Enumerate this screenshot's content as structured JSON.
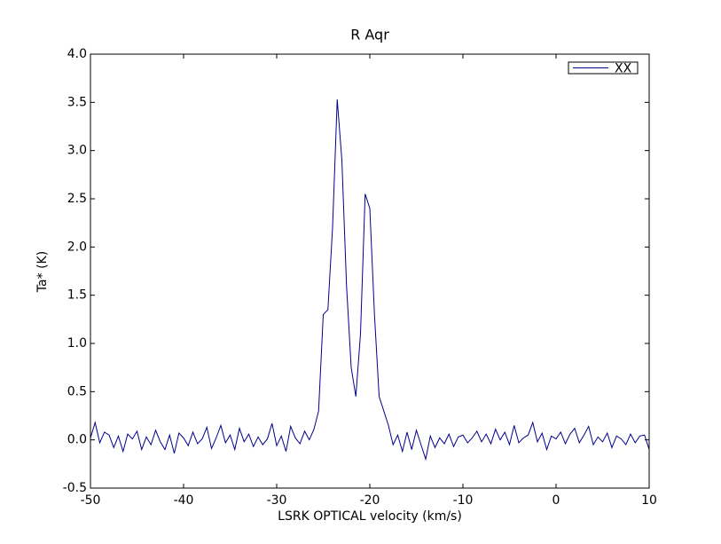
{
  "chart_data": {
    "type": "line",
    "title": "R Aqr",
    "x_label": "LSRK OPTICAL velocity (km/s)",
    "y_label": "Ta* (K)",
    "x": [
      -50,
      -49.5,
      -49,
      -48.5,
      -48,
      -47.5,
      -47,
      -46.5,
      -46,
      -45.5,
      -45,
      -44.5,
      -44,
      -43.5,
      -43,
      -42.5,
      -42,
      -41.5,
      -41,
      -40.5,
      -40,
      -39.5,
      -39,
      -38.5,
      -38,
      -37.5,
      -37,
      -36.5,
      -36,
      -35.5,
      -35,
      -34.5,
      -34,
      -33.5,
      -33,
      -32.5,
      -32,
      -31.5,
      -31,
      -30.5,
      -30,
      -29.5,
      -29,
      -28.5,
      -28,
      -27.5,
      -27,
      -26.5,
      -26,
      -25.5,
      -25,
      -24.5,
      -24,
      -23.5,
      -23,
      -22.5,
      -22,
      -21.5,
      -21,
      -20.5,
      -20,
      -19.5,
      -19,
      -18.5,
      -18,
      -17.5,
      -17,
      -16.5,
      -16,
      -15.5,
      -15,
      -14.5,
      -14,
      -13.5,
      -13,
      -12.5,
      -12,
      -11.5,
      -11,
      -10.5,
      -10,
      -9.5,
      -9,
      -8.5,
      -8,
      -7.5,
      -7,
      -6.5,
      -6,
      -5.5,
      -5,
      -4.5,
      -4,
      -3.5,
      -3,
      -2.5,
      -2,
      -1.5,
      -1,
      -0.5,
      0,
      0.5,
      1,
      1.5,
      2,
      2.5,
      3,
      3.5,
      4,
      4.5,
      5,
      5.5,
      6,
      6.5,
      7,
      7.5,
      8,
      8.5,
      9,
      9.5,
      10
    ],
    "series": [
      {
        "name": "XX",
        "color": "#00008b",
        "values": [
          0.02,
          0.18,
          -0.03,
          0.08,
          0.05,
          -0.08,
          0.04,
          -0.12,
          0.06,
          0.01,
          0.09,
          -0.1,
          0.03,
          -0.05,
          0.1,
          -0.02,
          -0.1,
          0.05,
          -0.14,
          0.07,
          0.02,
          -0.06,
          0.08,
          -0.04,
          0.01,
          0.13,
          -0.09,
          0.02,
          0.15,
          -0.03,
          0.05,
          -0.1,
          0.12,
          -0.02,
          0.06,
          -0.07,
          0.03,
          -0.05,
          0.01,
          0.17,
          -0.06,
          0.04,
          -0.12,
          0.14,
          0.02,
          -0.04,
          0.09,
          0.0,
          0.11,
          0.3,
          1.3,
          1.35,
          2.2,
          3.53,
          2.9,
          1.6,
          0.75,
          0.45,
          1.1,
          2.55,
          2.4,
          1.3,
          0.45,
          0.3,
          0.15,
          -0.05,
          0.05,
          -0.12,
          0.08,
          -0.1,
          0.1,
          -0.05,
          -0.2,
          0.04,
          -0.08,
          0.02,
          -0.04,
          0.06,
          -0.07,
          0.03,
          0.05,
          -0.03,
          0.02,
          0.09,
          -0.02,
          0.06,
          -0.04,
          0.11,
          0.0,
          0.08,
          -0.05,
          0.15,
          -0.03,
          0.02,
          0.05,
          0.18,
          -0.02,
          0.07,
          -0.1,
          0.04,
          0.01,
          0.08,
          -0.04,
          0.06,
          0.12,
          -0.03,
          0.05,
          0.14,
          -0.05,
          0.03,
          -0.02,
          0.07,
          -0.08,
          0.04,
          0.01,
          -0.05,
          0.06,
          -0.03,
          0.04,
          0.05,
          -0.1
        ]
      }
    ],
    "xlim": [
      -50,
      10
    ],
    "xticks": [
      -50,
      -40,
      -30,
      -20,
      -10,
      0,
      10
    ],
    "ylim": [
      -0.5,
      4.0
    ],
    "yticks": [
      -0.5,
      {
        "value": 0,
        "label": "0.0"
      },
      0.5,
      {
        "value": 1,
        "label": "1.0"
      },
      1.5,
      {
        "value": 2,
        "label": "2.0"
      },
      2.5,
      {
        "value": 3,
        "label": "3.0"
      },
      3.5,
      {
        "value": 4,
        "label": "4.0"
      }
    ],
    "legend": "upper right",
    "grid": false
  }
}
